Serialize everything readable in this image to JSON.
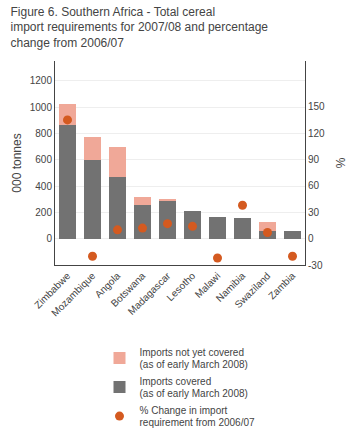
{
  "chart_data": {
    "type": "bar",
    "title": "Figure 6. Southern Africa - Total cereal import requirements for 2007/08 and percentage change from 2006/07",
    "ylabel": "000 tonnes",
    "y2label": "%",
    "categories": [
      "Zimbabwe",
      "Mozambique",
      "Angola",
      "Botswana",
      "Madagascar",
      "Lesotho",
      "Malawi",
      "Namibia",
      "Swaziland",
      "Zambia"
    ],
    "series": [
      {
        "name": "Imports covered\n(as of early March 2008)",
        "type": "bar",
        "color": "#727272",
        "values": [
          860,
          600,
          470,
          255,
          290,
          210,
          165,
          155,
          55,
          60
        ]
      },
      {
        "name": "Imports not yet covered\n(as of early March 2008)",
        "type": "bar",
        "color": "#F0A898",
        "values": [
          160,
          175,
          225,
          65,
          10,
          0,
          0,
          0,
          75,
          0
        ]
      },
      {
        "name": "% Change in import\nrequirement from 2006/07",
        "type": "scatter",
        "axis": "y2",
        "marker": "circle",
        "color": "#D45A20",
        "values": [
          135,
          -20,
          10,
          12,
          17,
          14,
          -22,
          38,
          7,
          -20
        ]
      }
    ],
    "stacked": true,
    "ylim": [
      -200,
      1350
    ],
    "yticks": [
      0,
      200,
      400,
      600,
      800,
      1000,
      1200
    ],
    "y2lim": [
      -30,
      202
    ],
    "y2ticks": [
      -30,
      0,
      30,
      60,
      90,
      120,
      150
    ],
    "grid": true,
    "legend": "bottom"
  }
}
